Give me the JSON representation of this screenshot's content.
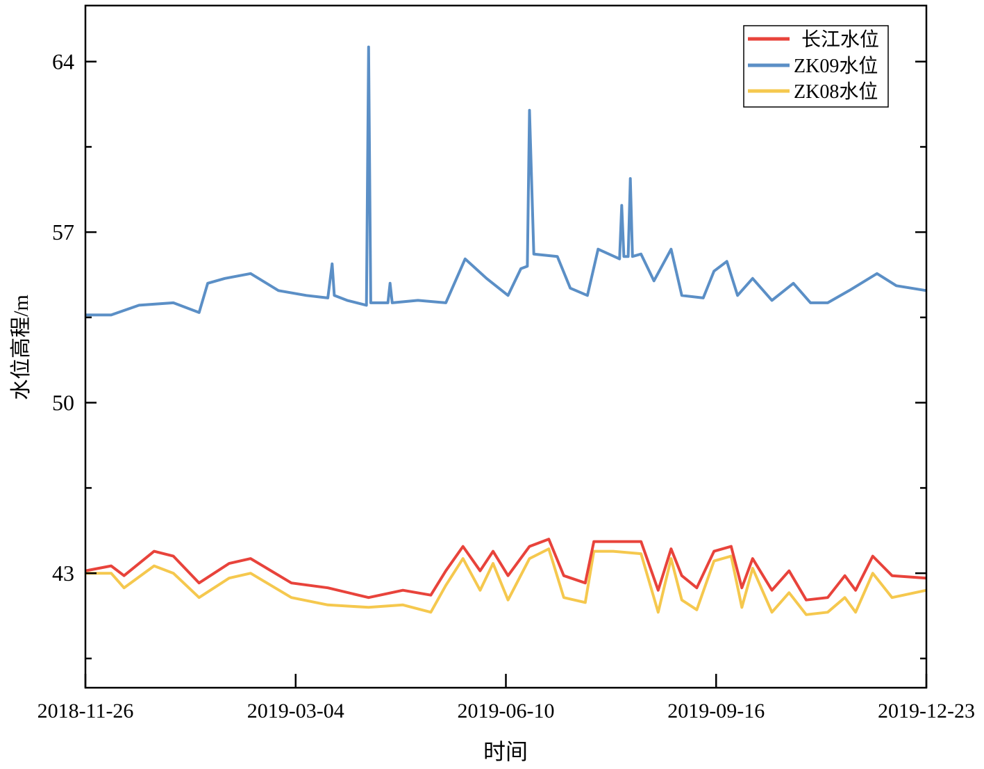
{
  "chart_data": {
    "type": "line",
    "title": "",
    "xlabel": "时间",
    "ylabel": "水位高程/m",
    "x_unit": "days since 2018-11-26",
    "xlim": [
      0,
      392
    ],
    "ylim": [
      38.3,
      66.3
    ],
    "x_ticks": [
      {
        "day": 0,
        "label": "2018-11-26"
      },
      {
        "day": 98,
        "label": "2019-03-04"
      },
      {
        "day": 196,
        "label": "2019-06-10"
      },
      {
        "day": 294,
        "label": "2019-09-16"
      },
      {
        "day": 392,
        "label": "2019-12-23"
      }
    ],
    "y_ticks": [
      {
        "value": 64,
        "label": "64"
      },
      {
        "value": 57,
        "label": "57"
      },
      {
        "value": 50,
        "label": "50"
      },
      {
        "value": 43,
        "label": "43"
      }
    ],
    "y_minor_ticks": [
      60.5,
      53.5,
      46.5,
      39.5
    ],
    "grid": false,
    "legend_position": "top-right",
    "series": [
      {
        "name": "长江水位",
        "color": "#e8433b",
        "points": [
          [
            0,
            43.1
          ],
          [
            12,
            43.3
          ],
          [
            18,
            42.9
          ],
          [
            32,
            43.9
          ],
          [
            41,
            43.7
          ],
          [
            53,
            42.6
          ],
          [
            67,
            43.4
          ],
          [
            77,
            43.6
          ],
          [
            96,
            42.6
          ],
          [
            113,
            42.4
          ],
          [
            132,
            42.0
          ],
          [
            148,
            42.3
          ],
          [
            161,
            42.1
          ],
          [
            168,
            43.1
          ],
          [
            176,
            44.1
          ],
          [
            184,
            43.1
          ],
          [
            190,
            43.9
          ],
          [
            197,
            42.9
          ],
          [
            207,
            44.1
          ],
          [
            216,
            44.4
          ],
          [
            223,
            42.9
          ],
          [
            233,
            42.6
          ],
          [
            237,
            44.3
          ],
          [
            246,
            44.3
          ],
          [
            259,
            44.3
          ],
          [
            267,
            42.3
          ],
          [
            273,
            44.0
          ],
          [
            278,
            42.9
          ],
          [
            285,
            42.4
          ],
          [
            293,
            43.9
          ],
          [
            301,
            44.1
          ],
          [
            306,
            42.4
          ],
          [
            311,
            43.6
          ],
          [
            320,
            42.3
          ],
          [
            328,
            43.1
          ],
          [
            336,
            41.9
          ],
          [
            346,
            42.0
          ],
          [
            354,
            42.9
          ],
          [
            359,
            42.3
          ],
          [
            367,
            43.7
          ],
          [
            376,
            42.9
          ],
          [
            392,
            42.8
          ]
        ]
      },
      {
        "name": "ZK09水位",
        "color": "#5b8fc6",
        "points": [
          [
            0,
            53.6
          ],
          [
            12,
            53.6
          ],
          [
            25,
            54.0
          ],
          [
            41,
            54.1
          ],
          [
            53,
            53.7
          ],
          [
            57,
            54.9
          ],
          [
            65,
            55.1
          ],
          [
            77,
            55.3
          ],
          [
            90,
            54.6
          ],
          [
            103,
            54.4
          ],
          [
            113,
            54.3
          ],
          [
            115,
            55.7
          ],
          [
            116,
            54.4
          ],
          [
            122,
            54.2
          ],
          [
            131,
            54.0
          ],
          [
            132,
            64.6
          ],
          [
            133,
            54.1
          ],
          [
            141,
            54.1
          ],
          [
            142,
            54.9
          ],
          [
            143,
            54.1
          ],
          [
            155,
            54.2
          ],
          [
            168,
            54.1
          ],
          [
            177,
            55.9
          ],
          [
            187,
            55.1
          ],
          [
            197,
            54.4
          ],
          [
            203,
            55.5
          ],
          [
            206,
            55.6
          ],
          [
            207,
            62.0
          ],
          [
            209,
            56.1
          ],
          [
            220,
            56.0
          ],
          [
            226,
            54.7
          ],
          [
            234,
            54.4
          ],
          [
            239,
            56.3
          ],
          [
            249,
            55.9
          ],
          [
            250,
            58.1
          ],
          [
            251,
            56.0
          ],
          [
            253,
            56.0
          ],
          [
            254,
            59.2
          ],
          [
            255,
            56.0
          ],
          [
            259,
            56.1
          ],
          [
            265,
            55.0
          ],
          [
            273,
            56.3
          ],
          [
            278,
            54.4
          ],
          [
            288,
            54.3
          ],
          [
            293,
            55.4
          ],
          [
            299,
            55.8
          ],
          [
            304,
            54.4
          ],
          [
            311,
            55.1
          ],
          [
            320,
            54.2
          ],
          [
            330,
            54.9
          ],
          [
            338,
            54.1
          ],
          [
            346,
            54.1
          ],
          [
            356,
            54.6
          ],
          [
            369,
            55.3
          ],
          [
            378,
            54.8
          ],
          [
            392,
            54.6
          ]
        ]
      },
      {
        "name": "ZK08水位",
        "color": "#f5c84e",
        "points": [
          [
            0,
            43.0
          ],
          [
            12,
            43.0
          ],
          [
            18,
            42.4
          ],
          [
            32,
            43.3
          ],
          [
            41,
            43.0
          ],
          [
            53,
            42.0
          ],
          [
            67,
            42.8
          ],
          [
            77,
            43.0
          ],
          [
            96,
            42.0
          ],
          [
            113,
            41.7
          ],
          [
            132,
            41.6
          ],
          [
            148,
            41.7
          ],
          [
            161,
            41.4
          ],
          [
            168,
            42.5
          ],
          [
            176,
            43.6
          ],
          [
            184,
            42.3
          ],
          [
            190,
            43.4
          ],
          [
            197,
            41.9
          ],
          [
            207,
            43.6
          ],
          [
            216,
            44.0
          ],
          [
            223,
            42.0
          ],
          [
            233,
            41.8
          ],
          [
            237,
            43.9
          ],
          [
            246,
            43.9
          ],
          [
            259,
            43.8
          ],
          [
            267,
            41.4
          ],
          [
            273,
            43.6
          ],
          [
            278,
            41.9
          ],
          [
            285,
            41.5
          ],
          [
            293,
            43.5
          ],
          [
            301,
            43.7
          ],
          [
            306,
            41.6
          ],
          [
            311,
            43.2
          ],
          [
            320,
            41.4
          ],
          [
            328,
            42.2
          ],
          [
            336,
            41.3
          ],
          [
            346,
            41.4
          ],
          [
            354,
            42.0
          ],
          [
            359,
            41.4
          ],
          [
            367,
            43.0
          ],
          [
            376,
            42.0
          ],
          [
            392,
            42.3
          ]
        ]
      }
    ]
  }
}
